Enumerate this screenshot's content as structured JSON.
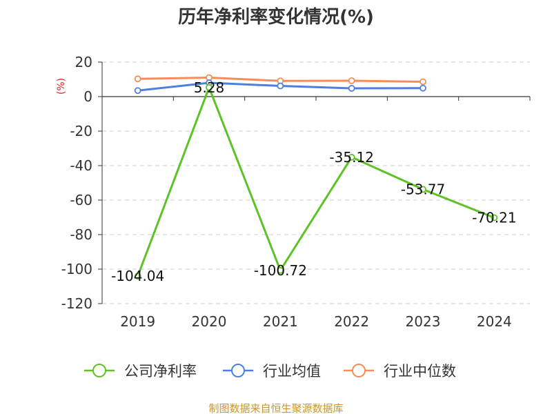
{
  "chart_data": {
    "type": "line",
    "title": "历年净利率变化情况(%)",
    "unit_label": "(%)",
    "categories": [
      "2019",
      "2020",
      "2021",
      "2022",
      "2023",
      "2024"
    ],
    "ylim": [
      -120,
      20
    ],
    "yticks": [
      20,
      0,
      -20,
      -40,
      -60,
      -80,
      -100,
      -120
    ],
    "grid": true,
    "legend_position": "bottom",
    "series": [
      {
        "name": "公司净利率",
        "color": "#5dc225",
        "values": [
          -104.04,
          5.28,
          -100.72,
          -35.12,
          -53.77,
          -70.21
        ],
        "labels": [
          "-104.04",
          "5.28",
          "-100.72",
          "-35.12",
          "-53.77",
          "-70.21"
        ]
      },
      {
        "name": "行业均值",
        "color": "#4e7fe0",
        "values": [
          3.5,
          8.0,
          6.2,
          4.8,
          4.9,
          null
        ]
      },
      {
        "name": "行业中位数",
        "color": "#f58c5a",
        "values": [
          10.3,
          11.0,
          9.1,
          9.2,
          8.6,
          null
        ]
      }
    ]
  },
  "source": "制图数据来自恒生聚源数据库",
  "colors": {
    "unit": "#e02020",
    "source": "#c8962a",
    "axis": "#333333",
    "grid": "#cccccc"
  }
}
